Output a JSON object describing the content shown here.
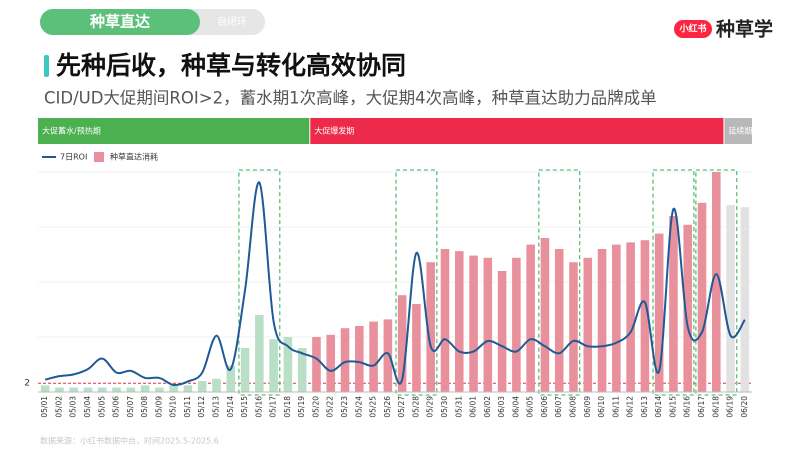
{
  "header": {
    "tab": "种草直达",
    "tab_note": "自闭环",
    "logo_badge": "小红书",
    "logo_text": "种草学",
    "title": "先种后收，种草与转化高效协同",
    "subtitle": "CID/UD大促期间ROI>2，蓄水期1次高峰，大促期4次高峰，种草直达助力品牌成单"
  },
  "chart_data": {
    "type": "bar_line",
    "categories": [
      "05/01",
      "05/02",
      "05/03",
      "05/04",
      "05/05",
      "05/06",
      "05/07",
      "05/08",
      "05/09",
      "05/10",
      "05/11",
      "05/12",
      "05/13",
      "05/14",
      "05/15",
      "05/16",
      "05/17",
      "05/18",
      "05/19",
      "05/20",
      "05/22",
      "05/23",
      "05/24",
      "05/25",
      "05/26",
      "05/27",
      "05/28",
      "05/29",
      "05/30",
      "05/31",
      "06/01",
      "06/02",
      "06/03",
      "06/04",
      "06/05",
      "06/06",
      "06/07",
      "06/08",
      "06/09",
      "06/10",
      "06/11",
      "06/12",
      "06/13",
      "06/14",
      "06/15",
      "06/16",
      "06/17",
      "06/18",
      "06/19",
      "06/20"
    ],
    "series": [
      {
        "name": "7日ROI",
        "type": "line",
        "color": "#1f5a96",
        "values": [
          2.2,
          2.4,
          2.5,
          2.8,
          3.4,
          2.6,
          2.7,
          2.3,
          2.3,
          1.9,
          2.1,
          2.6,
          4.7,
          2.8,
          7.3,
          13.4,
          5.5,
          4.1,
          3.7,
          3.4,
          2.7,
          3.2,
          3.2,
          3.0,
          3.7,
          2.2,
          9.4,
          4.1,
          4.5,
          3.8,
          3.8,
          4.4,
          4.1,
          3.8,
          4.5,
          4.1,
          3.7,
          4.4,
          4.1,
          4.1,
          4.3,
          4.9,
          6.6,
          2.7,
          11.9,
          5.2,
          4.9,
          8.2,
          4.7,
          5.6
        ]
      },
      {
        "name": "种草直达消耗",
        "type": "bar",
        "axis": "y2",
        "color": "#e8909c",
        "values": [
          3,
          2,
          2,
          2,
          2,
          2,
          2,
          3,
          2,
          3,
          3,
          5,
          6,
          12,
          20,
          35,
          24,
          25,
          20,
          25,
          26,
          29,
          30,
          32,
          33,
          44,
          40,
          59,
          65,
          64,
          62,
          61,
          55,
          61,
          67,
          70,
          65,
          59,
          61,
          65,
          67,
          68,
          69,
          72,
          80,
          76,
          86,
          100,
          85,
          84
        ]
      }
    ],
    "ylim": [
      1.5,
      14
    ],
    "yticks": [
      2
    ],
    "y2lim": [
      0,
      100
    ],
    "phases": [
      {
        "label": "大促蓄水/预热期",
        "from": "05/01",
        "to": "05/19",
        "color": "#4caf50",
        "bar_color": "#b9dfc6"
      },
      {
        "label": "大促爆发期",
        "from": "05/20",
        "to": "06/18",
        "color": "#ee2a4a",
        "bar_color": "#e8909c"
      },
      {
        "label": "延续期",
        "from": "06/19",
        "to": "06/20",
        "color": "#b8b8b8",
        "bar_color": "#e2e2e2"
      }
    ],
    "highlights": [
      {
        "from": "05/15",
        "to": "05/17"
      },
      {
        "from": "05/27",
        "to": "05/29"
      },
      {
        "from": "06/06",
        "to": "06/08"
      },
      {
        "from": "06/14",
        "to": "06/16"
      },
      {
        "from": "06/17",
        "to": "06/19"
      }
    ],
    "legend": "top-left"
  },
  "footer": {
    "source": "数据来源：小红书数据中台，时间2025.5-2025.6"
  }
}
